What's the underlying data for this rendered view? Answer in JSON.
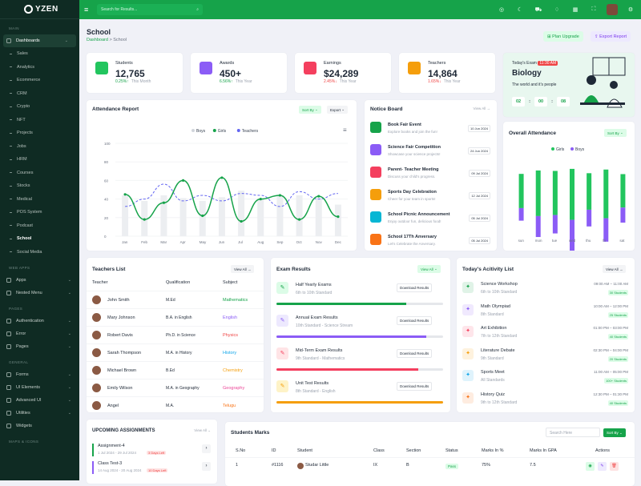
{
  "brand": "YZEN",
  "search": {
    "placeholder": "Search for Results..."
  },
  "sidebar": {
    "main_label": "MAIN",
    "dashboards": "Dashboards",
    "subs": [
      "Sales",
      "Analytics",
      "Ecommerce",
      "CRM",
      "Crypto",
      "NFT",
      "Projects",
      "Jobs",
      "HRM",
      "Courses",
      "Stocks",
      "Medical",
      "POS System",
      "Podcast",
      "School",
      "Social Media"
    ],
    "web_apps_label": "WEB APPS",
    "apps": "Apps",
    "nested": "Nested Menu",
    "pages_label": "PAGES",
    "auth": "Authentication",
    "error": "Error",
    "pages": "Pages",
    "general_label": "GENERAL",
    "forms": "Forms",
    "ui": "UI Elements",
    "advui": "Advanced UI",
    "utils": "Utilities",
    "widgets": "Widgets",
    "maps_label": "MAPS & ICONS"
  },
  "page": {
    "title": "School",
    "crumb_root": "Dashboard",
    "crumb_sep": ">",
    "crumb_cur": "School",
    "plan": "Plan Upgrade",
    "export": "Export Report"
  },
  "stats": [
    {
      "label": "Students",
      "value": "12,765",
      "pct": "0.25%",
      "arrow": "↑",
      "period": "This Month",
      "color": "#16a34a",
      "bg": "#22c55e"
    },
    {
      "label": "Awards",
      "value": "450+",
      "pct": "6.56%",
      "arrow": "↑",
      "period": "This Year",
      "color": "#16a34a",
      "bg": "#8b5cf6"
    },
    {
      "label": "Earnings",
      "value": "$24,289",
      "pct": "2.45%",
      "arrow": "↓",
      "period": "This Year",
      "color": "#ef4444",
      "bg": "#f43f5e"
    },
    {
      "label": "Teachers",
      "value": "14,864",
      "pct": "1.65%",
      "arrow": "↓",
      "period": "This Year",
      "color": "#ef4444",
      "bg": "#f59e0b"
    }
  ],
  "exam": {
    "label": "Today's Exam",
    "time": "11:30 AM",
    "subject": "Biology",
    "line": "The world and it's people",
    "h": "02",
    "m": "00",
    "s": "08"
  },
  "attendance": {
    "title": "Attendance Report",
    "sort": "Sort By",
    "export": "Export",
    "legend": [
      "Boys",
      "Girls",
      "Teachers"
    ]
  },
  "chart_data": [
    {
      "type": "line",
      "title": "Attendance Report",
      "categories": [
        "Jan",
        "Feb",
        "Mar",
        "Apr",
        "May",
        "Jun",
        "Jul",
        "Aug",
        "Sep",
        "Oct",
        "Nov",
        "Dec"
      ],
      "ylim": [
        0,
        100
      ],
      "yticks": [
        0,
        20,
        40,
        60,
        80,
        100
      ],
      "series": [
        {
          "name": "Boys",
          "color": "#d1d5db",
          "values": [
            44,
            38,
            44,
            41,
            38,
            42,
            49,
            41,
            44,
            44,
            41,
            34
          ]
        },
        {
          "name": "Girls",
          "color": "#16a34a",
          "values": [
            45,
            18,
            36,
            60,
            22,
            63,
            16,
            40,
            44,
            18,
            43,
            21
          ]
        },
        {
          "name": "Teachers",
          "color": "#6366f1",
          "values": [
            32,
            40,
            56,
            38,
            44,
            38,
            46,
            44,
            32,
            48,
            40,
            46
          ]
        }
      ]
    },
    {
      "type": "bar",
      "title": "Overall Attendance",
      "categories": [
        "sun",
        "mon",
        "tue",
        "wed",
        "thu",
        "fri",
        "sat"
      ],
      "series": [
        {
          "name": "Girls",
          "color": "#22c55e",
          "values": [
            45,
            60,
            58,
            67,
            48,
            64,
            44
          ]
        },
        {
          "name": "Boys",
          "color": "#8b5cf6",
          "values": [
            15,
            25,
            22,
            38,
            20,
            28,
            18
          ]
        }
      ]
    }
  ],
  "notice": {
    "title": "Notice Board",
    "view": "View All",
    "items": [
      {
        "t": "Book Fair Event",
        "s": "Explore books and join the fun!",
        "d": "10 Jun 2024",
        "c": "#16a34a"
      },
      {
        "t": "Science Fair Competition",
        "s": "Showcase your science projects!",
        "d": "24 Jun 2024",
        "c": "#8b5cf6"
      },
      {
        "t": "Parent- Teacher Meeting",
        "s": "Discuss your child's progress.",
        "d": "09 Jul 2024",
        "c": "#f43f5e"
      },
      {
        "t": "Sports Day Celebration",
        "s": "Cheer for your team in sports!",
        "d": "12 Jul 2024",
        "c": "#f59e0b"
      },
      {
        "t": "School Picnic Announcement",
        "s": "Enjoy outdoor fun, delicious food!",
        "d": "05 Jul 2024",
        "c": "#06b6d4"
      },
      {
        "t": "School 17Th Anversary",
        "s": "Let's Celebrate the Anversary.",
        "d": "05 Jul 2024",
        "c": "#f97316"
      }
    ]
  },
  "overall": {
    "title": "Overall Attendance",
    "sort": "Sort By",
    "legend": [
      "Girls",
      "Boys"
    ]
  },
  "teachers": {
    "title": "Teachers List",
    "view": "View All",
    "cols": [
      "Teacher",
      "Qualification",
      "Subject"
    ],
    "rows": [
      {
        "n": "John Smith",
        "q": "M.Ed",
        "s": "Mathematics",
        "c": "#16a34a"
      },
      {
        "n": "Mary Johnson",
        "q": "B.A. in English",
        "s": "English",
        "c": "#8b5cf6"
      },
      {
        "n": "Robert Davis",
        "q": "Ph.D. in Science",
        "s": "Physics",
        "c": "#ef4444"
      },
      {
        "n": "Sarah Thompson",
        "q": "M.A. in History",
        "s": "History",
        "c": "#0ea5e9"
      },
      {
        "n": "Michael Brown",
        "q": "B.Ed",
        "s": "Chemistry",
        "c": "#f59e0b"
      },
      {
        "n": "Emily Wilson",
        "q": "M.A. in Geography",
        "s": "Geography",
        "c": "#ec4899"
      },
      {
        "n": "Angel",
        "q": "M.A.",
        "s": "Telugu",
        "c": "#f97316"
      }
    ]
  },
  "results": {
    "title": "Exam Results",
    "view": "View All",
    "dl": "Download Results",
    "items": [
      {
        "t": "Half Yearly Exams",
        "s": "6th to 10th Standard",
        "c": "#16a34a",
        "bg": "#dcfce7",
        "p": 0.78
      },
      {
        "t": "Annual Exam Results",
        "s": "10th Standard - Science Stream",
        "c": "#8b5cf6",
        "bg": "#ede9fe",
        "p": 0.9
      },
      {
        "t": "Mid-Term Exam Results",
        "s": "9th Standard - Mathematics",
        "c": "#f43f5e",
        "bg": "#ffe4e6",
        "p": 0.85
      },
      {
        "t": "Unit Test Results",
        "s": "8th Standard - English",
        "c": "#f59e0b",
        "bg": "#fef3c7",
        "p": 1.0
      }
    ]
  },
  "activity": {
    "title": "Today's Acitivity List",
    "view": "View All",
    "items": [
      {
        "t": "Science Workshop",
        "s": "6th to 10th Standard",
        "time": "09:00 AM – 11:00 AM",
        "n": "30 Students",
        "c": "#16a34a"
      },
      {
        "t": "Math Olympiad",
        "s": "8th Standard",
        "time": "10:00 AM – 12:00 PM",
        "n": "25 Students",
        "c": "#8b5cf6"
      },
      {
        "t": "Art Exhibition",
        "s": "7th to 12th Standard",
        "time": "01:00 PM – 03:00 PM",
        "n": "40 Students",
        "c": "#f43f5e"
      },
      {
        "t": "Literature Debate",
        "s": "9th Standard",
        "time": "02:30 PM – 04:00 PM",
        "n": "20 Students",
        "c": "#f59e0b"
      },
      {
        "t": "Sports Meet",
        "s": "All Standards",
        "time": "11:00 AM – 05:00 PM",
        "n": "100+ Students",
        "c": "#0ea5e9"
      },
      {
        "t": "History Quiz",
        "s": "9th to 12th Standard",
        "time": "12:30 PM – 01:30 PM",
        "n": "40 Students",
        "c": "#f97316"
      }
    ]
  },
  "assign": {
    "title": "UPCOMING ASSIGNMENTS",
    "view": "View All",
    "items": [
      {
        "t": "Assignment-4",
        "d": "1 Jul 2024 - 29 Jul 2024",
        "tag": "3 Days Left"
      },
      {
        "t": "Class Test-3",
        "d": "14 Aug 2024 - 20 Aug 2024",
        "tag": "10 Days Left"
      }
    ]
  },
  "marks": {
    "title": "Students Marks",
    "search": "Search Here",
    "sort": "Sort By",
    "cols": [
      "S.No",
      "ID",
      "Student",
      "Class",
      "Section",
      "Status",
      "Marks In %",
      "Marks In GPA",
      "Actions"
    ],
    "row": {
      "sno": "1",
      "id": "#1116",
      "name": "Studar Little",
      "cls": "IX",
      "sec": "B",
      "status": "Pass",
      "pct": "75%",
      "gpa": "7.5"
    }
  }
}
